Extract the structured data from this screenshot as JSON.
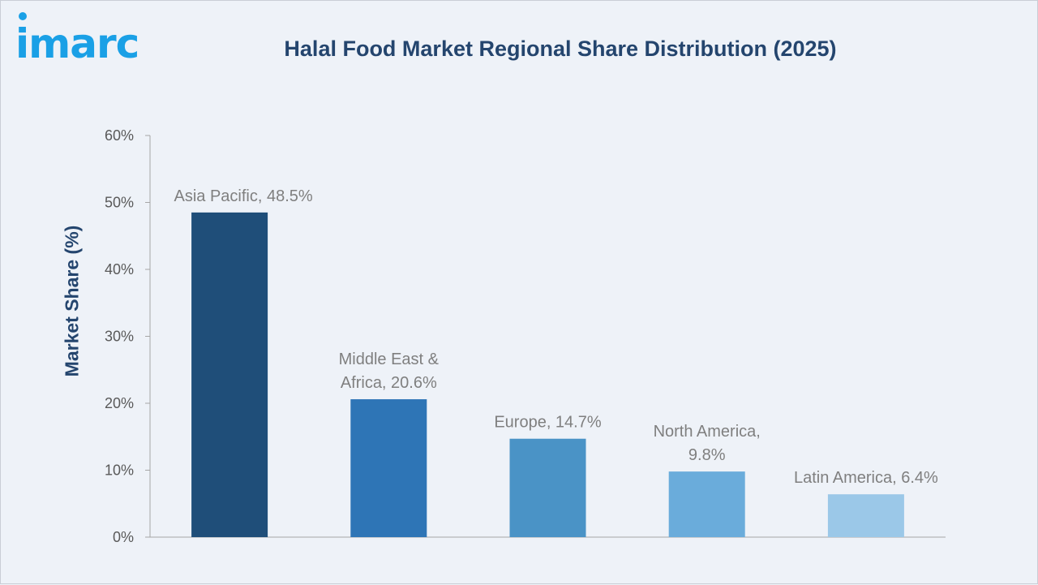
{
  "brand": {
    "logo_text": "imarc",
    "color": "#1aa0e6"
  },
  "chart_data": {
    "type": "bar",
    "title": "Halal Food Market Regional Share Distribution (2025)",
    "xlabel": "",
    "ylabel": "Market Share (%)",
    "ylim": [
      0,
      60
    ],
    "yticks": [
      0,
      10,
      20,
      30,
      40,
      50,
      60
    ],
    "ytick_labels": [
      "0%",
      "10%",
      "20%",
      "30%",
      "40%",
      "50%",
      "60%"
    ],
    "grid": false,
    "legend": "none",
    "categories": [
      "Asia Pacific",
      "Middle East & Africa",
      "Europe",
      "North America",
      "Latin America"
    ],
    "values": [
      48.5,
      20.6,
      14.7,
      9.8,
      6.4
    ],
    "data_labels": [
      [
        "Asia Pacific, 48.5%"
      ],
      [
        "Middle East &",
        "Africa, 20.6%"
      ],
      [
        "Europe, 14.7%"
      ],
      [
        "North America,",
        "9.8%"
      ],
      [
        "Latin America, 6.4%"
      ]
    ],
    "colors": [
      "#1f4e79",
      "#2e75b6",
      "#4a93c6",
      "#6aacdb",
      "#9bc8e8"
    ]
  }
}
